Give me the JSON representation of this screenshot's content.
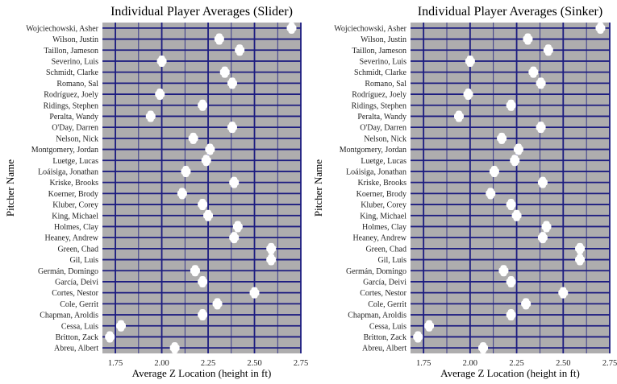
{
  "chart_data": [
    {
      "type": "scatter",
      "title": "Individual Player Averages (Slider)",
      "xlabel": "Average Z Location (height in ft)",
      "ylabel": "Pitcher Name",
      "xlim": [
        1.68,
        2.75
      ],
      "xticks": [
        1.75,
        2.0,
        2.25,
        2.5,
        2.75
      ],
      "xtick_labels": [
        "1.75",
        "2.00",
        "2.25",
        "2.50",
        "2.75"
      ],
      "grid": true,
      "categories": [
        "Wojciechowski, Asher",
        "Wilson, Justin",
        "Taillon, Jameson",
        "Severino, Luis",
        "Schmidt, Clarke",
        "Romano, Sal",
        "Rodríguez, Joely",
        "Ridings, Stephen",
        "Peralta, Wandy",
        "O'Day, Darren",
        "Nelson, Nick",
        "Montgomery, Jordan",
        "Luetge, Lucas",
        "Loáisiga, Jonathan",
        "Kriske, Brooks",
        "Koerner, Brody",
        "Kluber, Corey",
        "King, Michael",
        "Holmes, Clay",
        "Heaney, Andrew",
        "Green, Chad",
        "Gil, Luis",
        "Germán, Domingo",
        "García, Deivi",
        "Cortes, Nestor",
        "Cole, Gerrit",
        "Chapman, Aroldis",
        "Cessa, Luis",
        "Britton, Zack",
        "Abreu, Albert"
      ],
      "values": [
        2.7,
        2.31,
        2.42,
        2.0,
        2.34,
        2.38,
        1.99,
        2.22,
        1.94,
        2.38,
        2.17,
        2.26,
        2.24,
        2.13,
        2.39,
        2.11,
        2.22,
        2.25,
        2.41,
        2.39,
        2.59,
        2.59,
        2.18,
        2.22,
        2.5,
        2.3,
        2.22,
        1.78,
        1.72,
        2.07
      ]
    },
    {
      "type": "scatter",
      "title": "Individual Player Averages (Sinker)",
      "xlabel": "Average Z Location (height in ft)",
      "ylabel": "Pitcher Name",
      "xlim": [
        1.68,
        2.75
      ],
      "xticks": [
        1.75,
        2.0,
        2.25,
        2.5,
        2.75
      ],
      "xtick_labels": [
        "1.75",
        "2.00",
        "2.25",
        "2.50",
        "2.75"
      ],
      "grid": true,
      "categories": [
        "Wojciechowski, Asher",
        "Wilson, Justin",
        "Taillon, Jameson",
        "Severino, Luis",
        "Schmidt, Clarke",
        "Romano, Sal",
        "Rodríguez, Joely",
        "Ridings, Stephen",
        "Peralta, Wandy",
        "O'Day, Darren",
        "Nelson, Nick",
        "Montgomery, Jordan",
        "Luetge, Lucas",
        "Loáisiga, Jonathan",
        "Kriske, Brooks",
        "Koerner, Brody",
        "Kluber, Corey",
        "King, Michael",
        "Holmes, Clay",
        "Heaney, Andrew",
        "Green, Chad",
        "Gil, Luis",
        "Germán, Domingo",
        "García, Deivi",
        "Cortes, Nestor",
        "Cole, Gerrit",
        "Chapman, Aroldis",
        "Cessa, Luis",
        "Britton, Zack",
        "Abreu, Albert"
      ],
      "values": [
        2.7,
        2.31,
        2.42,
        2.0,
        2.34,
        2.38,
        1.99,
        2.22,
        1.94,
        2.38,
        2.17,
        2.26,
        2.24,
        2.13,
        2.39,
        2.11,
        2.22,
        2.25,
        2.41,
        2.39,
        2.59,
        2.59,
        2.18,
        2.22,
        2.5,
        2.3,
        2.22,
        1.78,
        1.72,
        2.07
      ]
    }
  ],
  "colors": {
    "panel_background": "#aeadae",
    "gridline": "#1c1c80",
    "marker": "#ffffff",
    "text": "#222222"
  }
}
